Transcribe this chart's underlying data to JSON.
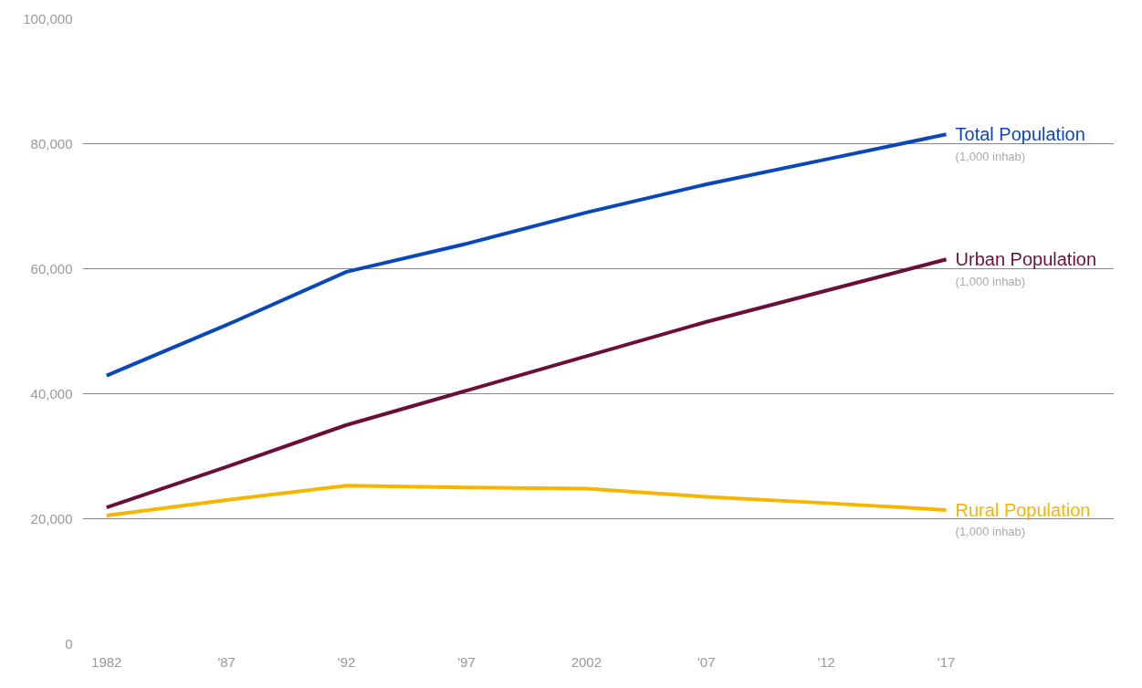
{
  "chart_data": {
    "type": "line",
    "x": [
      1982,
      1987,
      1992,
      1997,
      2002,
      2007,
      2012,
      2017
    ],
    "series": [
      {
        "name": "Total Population",
        "color": "#0a47b8",
        "values": [
          42900,
          51000,
          59500,
          64000,
          69000,
          73500,
          77500,
          81500
        ]
      },
      {
        "name": "Urban Population",
        "color": "#6b0f3a",
        "values": [
          21800,
          28300,
          35000,
          40500,
          46000,
          51500,
          56500,
          61500
        ]
      },
      {
        "name": "Rural Population",
        "color": "#f7b500",
        "values": [
          20500,
          23000,
          25300,
          25000,
          24800,
          23500,
          22500,
          21400
        ]
      }
    ],
    "annotations": [
      "(1,000 inhab)",
      "(1,000 inhab)",
      "(1,000 inhab)"
    ],
    "xlim": [
      1981,
      2024
    ],
    "ylim": [
      0,
      100000
    ],
    "xticks": [
      1982,
      {
        "value": 1987,
        "label": "'87"
      },
      {
        "value": 1992,
        "label": "'92"
      },
      {
        "value": 1997,
        "label": "'97"
      },
      2002,
      {
        "value": 2007,
        "label": "'07"
      },
      {
        "value": 2012,
        "label": "'12"
      },
      {
        "value": 2017,
        "label": "'17"
      }
    ],
    "yticks": [
      {
        "value": 0,
        "label": "0"
      },
      {
        "value": 20000,
        "label": "20,000"
      },
      {
        "value": 40000,
        "label": "40,000"
      },
      {
        "value": 60000,
        "label": "60,000"
      },
      {
        "value": 80000,
        "label": "80,000"
      },
      {
        "value": 100000,
        "label": "100,000"
      }
    ],
    "grid": "y",
    "marker": "none",
    "line_style": "solid"
  }
}
